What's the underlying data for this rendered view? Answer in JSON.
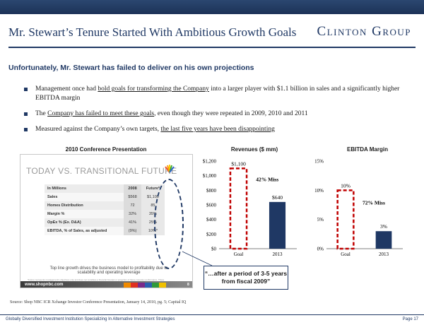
{
  "header": {
    "title": "Mr. Stewart’s Tenure Started With Ambitious Growth Goals",
    "logo": "Clinton Group"
  },
  "subtitle": "Unfortunately, Mr. Stewart has failed to deliver on his own projections",
  "bullets": [
    {
      "pre": "Management once had ",
      "link": "bold goals for transforming the Company",
      "post": " into a larger player with $1.1 billion in sales and a significantly higher EBITDA margin"
    },
    {
      "pre": "The ",
      "link": "Company has failed to meet these goals",
      "post": ", even though they were repeated in 2009, 2010 and 2011"
    },
    {
      "pre": "Measured against the Company’s own targets, ",
      "link": "the last five years have been disappointing",
      "post": ""
    }
  ],
  "panels": {
    "conference": "2010 Conference Presentation",
    "revenues": "Revenues ($ mm)",
    "ebitda": "EBITDA Margin"
  },
  "embed": {
    "heading": "TODAY VS. TRANSITIONAL FUTURE",
    "table": [
      [
        "In Millions",
        "2008",
        "Future*"
      ],
      [
        "Sales",
        "$568",
        "$1,100"
      ],
      [
        "Homes Distribution",
        "72",
        "85"
      ],
      [
        "Margin %",
        "32%",
        "35%"
      ],
      [
        "OpEx % (Ex. D&A)",
        "41%",
        "25%"
      ],
      [
        "EBITDA, % of Sales, as adjusted",
        "(9%)",
        "10%*"
      ]
    ],
    "note": "Top line growth drives the business model to profitability due to scalability and operating leverage",
    "fine_print": "*Future represents management's objectives only and does not constitute a financial forecast or projection of future company performance. These management objectives are for the company's annual operating model after a period of approximately 3-5 years from fiscal 2009.",
    "url": "www.shopnbc.com",
    "page": "8"
  },
  "callout": "“…after a period of 3-5 years from fiscal 2009”",
  "chart_data": [
    {
      "type": "bar",
      "title": "Revenues ($ mm)",
      "categories": [
        "Goal",
        "2013"
      ],
      "values": [
        1100,
        640
      ],
      "value_labels": [
        "$1,100",
        "$640"
      ],
      "ylim": [
        0,
        1200
      ],
      "yticks": [
        "$0",
        "$200",
        "$400",
        "$600",
        "$800",
        "$1,000",
        "$1,200"
      ],
      "annotation": "42% Miss",
      "colors": {
        "goal_border": "#c00000",
        "actual": "#1f3864"
      }
    },
    {
      "type": "bar",
      "title": "EBITDA Margin",
      "categories": [
        "Goal",
        "2013"
      ],
      "values": [
        10,
        3
      ],
      "value_labels": [
        "10%",
        "3%"
      ],
      "ylim": [
        0,
        15
      ],
      "yticks": [
        "0%",
        "5%",
        "10%",
        "15%"
      ],
      "annotation": "72% Miss",
      "colors": {
        "goal_border": "#c00000",
        "actual": "#1f3864"
      }
    }
  ],
  "source": "Source: Shop NBC ICR Xchange Investor Conference Presentation, January 14, 2010, pg. 5; Capital IQ",
  "footer": {
    "left": "Globally Diversified Investment Institution Specializing In Alternative Investment Strategies",
    "right": "Page 17"
  }
}
